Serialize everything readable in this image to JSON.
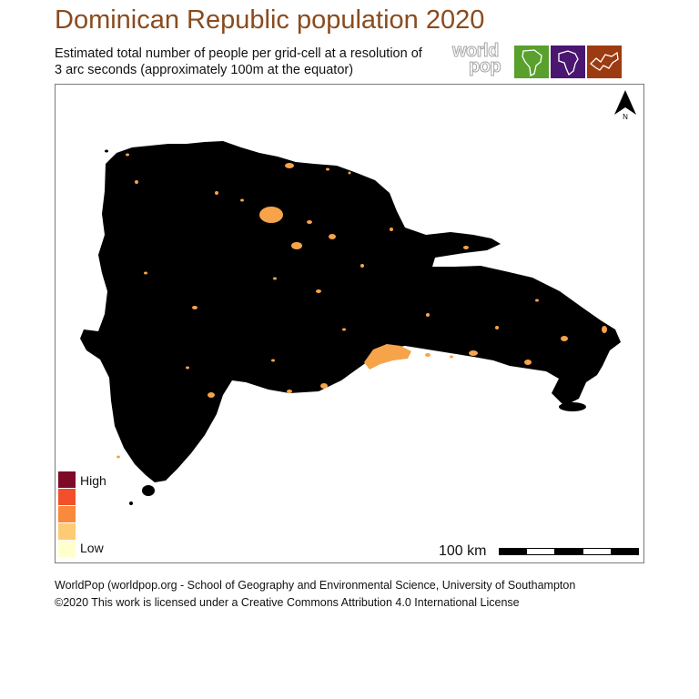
{
  "header": {
    "title": "Dominican Republic population 2020",
    "subtitle_line1": "Estimated total number of people per grid-cell at a resolution of",
    "subtitle_line2": "3 arc seconds (approximately 100m at the equator)"
  },
  "logo": {
    "word_top": "world",
    "word_bottom": "pop",
    "tiles": [
      "south-america-tile-icon",
      "africa-tile-icon",
      "asia-tile-icon"
    ],
    "tile_colors": [
      "#5aa02c",
      "#4a1670",
      "#9c3a12"
    ]
  },
  "map": {
    "land_color": "#000000",
    "north_label": "N",
    "urban_color": "#f7a34a"
  },
  "legend": {
    "high_label": "High",
    "low_label": "Low",
    "colors": [
      "#7f0a28",
      "#f2502a",
      "#f98a3c",
      "#fdcb73",
      "#ffffcc"
    ]
  },
  "scale_bar": {
    "label": "100 km"
  },
  "footer": {
    "line1": "WorldPop (worldpop.org - School of Geography and Environmental Science, University of Southampton",
    "line2": "©2020 This work is licensed under a Creative Commons Attribution 4.0 International License"
  }
}
